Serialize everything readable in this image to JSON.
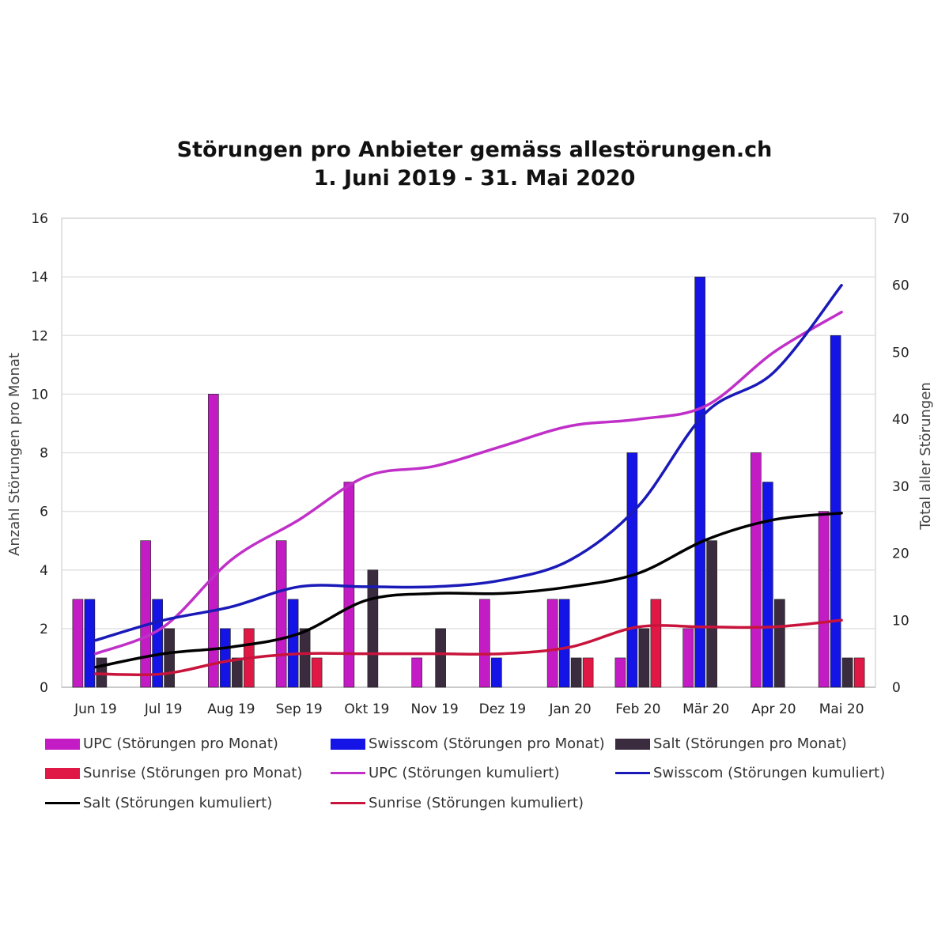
{
  "chart_data": {
    "type": "bar",
    "title": "Störungen pro Anbieter gemäss allestörungen.ch",
    "subtitle": "1. Juni 2019 - 31. Mai 2020",
    "ylabel_left": "Anzahl Störungen pro Monat",
    "ylabel_right": "Total aller Störungen",
    "ylim_left": [
      0,
      16
    ],
    "ylim_right": [
      0,
      70
    ],
    "yticks_left": [
      "0",
      "2",
      "4",
      "6",
      "8",
      "10",
      "12",
      "14",
      "16"
    ],
    "yticks_right": [
      "0",
      "10",
      "20",
      "30",
      "40",
      "50",
      "60",
      "70"
    ],
    "grid": true,
    "categories": [
      "Jun 19",
      "Jul 19",
      "Aug 19",
      "Sep 19",
      "Okt 19",
      "Nov 19",
      "Dez 19",
      "Jan 20",
      "Feb 20",
      "Mär 20",
      "Apr 20",
      "Mai 20"
    ],
    "bar_series": [
      {
        "name": "UPC  (Störungen pro Monat)",
        "color": "#c41cc4",
        "values": [
          3,
          5,
          10,
          5,
          7,
          1,
          3,
          3,
          1,
          2,
          8,
          6
        ]
      },
      {
        "name": "Swisscom (Störungen pro Monat)",
        "color": "#1414e6",
        "values": [
          3,
          3,
          2,
          3,
          0,
          0,
          1,
          3,
          8,
          14,
          7,
          12
        ]
      },
      {
        "name": "Salt (Störungen pro Monat)",
        "color": "#3a2c3e",
        "values": [
          1,
          2,
          1,
          2,
          4,
          2,
          0,
          1,
          2,
          5,
          3,
          1
        ]
      },
      {
        "name": "Sunrise (Störungen pro Monat)",
        "color": "#e01846",
        "values": [
          0,
          0,
          2,
          1,
          0,
          0,
          0,
          1,
          3,
          0,
          0,
          1
        ]
      }
    ],
    "line_series": [
      {
        "name": "UPC (Störungen kumuliert)",
        "color": "#c030c8",
        "values": [
          5,
          9,
          19,
          25,
          31.5,
          33,
          36,
          39,
          40,
          42,
          50,
          56
        ]
      },
      {
        "name": "Swisscom (Störungen kumuliert)",
        "color": "#1a1ab8",
        "values": [
          7,
          10,
          12,
          15,
          15,
          15,
          16,
          19,
          27,
          41,
          47,
          60
        ]
      },
      {
        "name": "Salt (Störungen kumuliert)",
        "color": "#000000",
        "values": [
          3,
          5,
          6,
          8,
          13,
          14,
          14,
          15,
          17,
          22,
          25,
          26
        ]
      },
      {
        "name": "Sunrise (Störungen kumuliert)",
        "color": "#c8143c",
        "values": [
          2,
          2,
          4,
          5,
          5,
          5,
          5,
          6,
          9,
          9,
          9,
          10
        ]
      }
    ],
    "legend_position": "bottom"
  }
}
